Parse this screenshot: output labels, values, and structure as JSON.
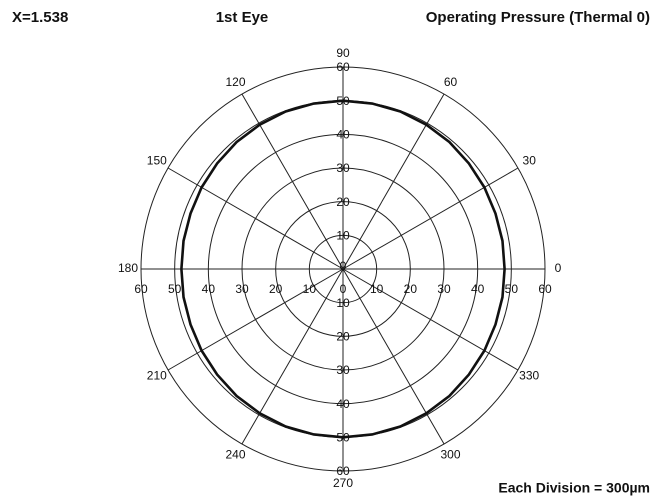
{
  "chart_data": {
    "type": "polar",
    "title": "1st Eye",
    "annotations": [
      "X=1.538",
      "Operating Pressure (Thermal 0)",
      "Each Division = 300µm"
    ],
    "rlim": [
      0,
      60
    ],
    "rticks": [
      10,
      20,
      30,
      40,
      50,
      60
    ],
    "thetaticks": [
      0,
      30,
      60,
      90,
      120,
      150,
      180,
      210,
      240,
      270,
      300,
      330
    ],
    "series": [
      {
        "color": "#111111",
        "theta": [
          0,
          10,
          20,
          30,
          40,
          50,
          60,
          70,
          80,
          90,
          100,
          110,
          120,
          130,
          140,
          150,
          160,
          170,
          180,
          190,
          200,
          210,
          220,
          230,
          240,
          250,
          260,
          270,
          280,
          290,
          300,
          310,
          320,
          330,
          340,
          350
        ],
        "values": [
          48,
          48.1,
          48.2,
          48.5,
          48.8,
          49.2,
          49.5,
          49.8,
          49.9,
          50,
          49.9,
          49.8,
          49.5,
          49.2,
          48.8,
          48.5,
          48.2,
          48.1,
          48,
          48.1,
          48.2,
          48.5,
          48.8,
          49.2,
          49.5,
          49.8,
          49.9,
          50,
          49.9,
          49.8,
          49.5,
          49.2,
          48.8,
          48.5,
          48.2,
          48.1
        ]
      }
    ]
  }
}
